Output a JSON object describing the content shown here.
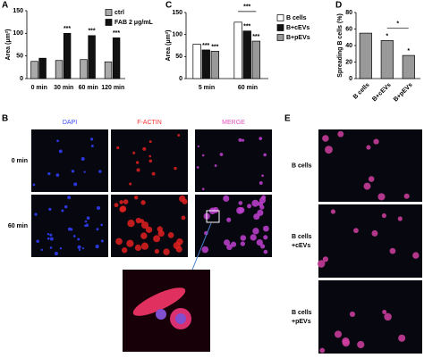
{
  "chart_data": [
    {
      "type": "bar",
      "panel": "A",
      "y_label": "Area (μm²)",
      "categories": [
        "0 min",
        "30 min",
        "60 min",
        "120 min"
      ],
      "series": [
        {
          "name": "ctrl",
          "color": "#aaaaaa",
          "values": [
            38,
            40,
            42,
            37
          ]
        },
        {
          "name": "FAB 2 μg/mL",
          "color": "#111111",
          "values": [
            45,
            100,
            95,
            90
          ],
          "significance": [
            null,
            "***",
            "***",
            "***"
          ]
        }
      ],
      "ylim": [
        0,
        150
      ],
      "yticks": [
        0,
        50,
        100,
        150
      ]
    },
    {
      "type": "bar",
      "panel": "C",
      "y_label": "Area (μm²)",
      "categories": [
        "5 min",
        "60 min"
      ],
      "series": [
        {
          "name": "B cells",
          "color": "#ffffff",
          "values": [
            78,
            128
          ]
        },
        {
          "name": "B+cEVs",
          "color": "#111111",
          "values": [
            65,
            108
          ],
          "significance": [
            "***",
            "***"
          ]
        },
        {
          "name": "B+pEVs",
          "color": "#999999",
          "values": [
            62,
            85
          ],
          "significance": [
            "***",
            "***"
          ]
        }
      ],
      "bracket_label": "***",
      "ylim": [
        0,
        150
      ],
      "yticks": [
        0,
        50,
        100,
        150
      ]
    },
    {
      "type": "bar",
      "panel": "D",
      "y_label": "Spreading B cells (%)",
      "categories": [
        "B cells",
        "B+cEVs",
        "B+pEVs"
      ],
      "values": [
        55,
        46,
        28
      ],
      "color": "#999999",
      "significance": [
        null,
        "*",
        "*"
      ],
      "bracket_label": "*",
      "ylim": [
        0,
        80
      ],
      "yticks": [
        0,
        20,
        40,
        60,
        80
      ]
    }
  ],
  "panel_B": {
    "letter": "B",
    "columns": [
      "DAPI",
      "F-ACTIN",
      "MERGE"
    ],
    "rows": [
      "0 min",
      "60 min"
    ]
  },
  "panel_E": {
    "letter": "E",
    "rows": [
      [
        "B cells"
      ],
      [
        "B cells",
        "+cEVs"
      ],
      [
        "B cells",
        "+pEVs"
      ]
    ]
  }
}
